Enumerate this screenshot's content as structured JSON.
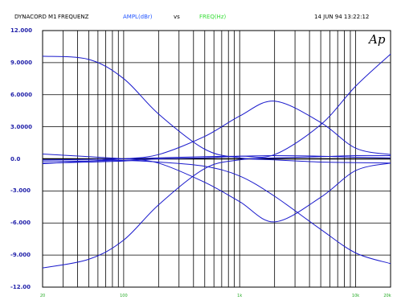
{
  "header": {
    "device": "DYNACORD M1",
    "mode": "FREQUENZ",
    "y_quantity": "AMPL(dBr)",
    "vs": "vs",
    "x_quantity": "FREQ(Hz)",
    "datetime": "14 JUN 94 13:22:12"
  },
  "logo_text": "Ap",
  "colors": {
    "curve": "#1a1acc",
    "grid": "#000000",
    "y_label": "#2222aa",
    "x_label": "#22aa22",
    "header_y": "#2255ff",
    "header_x": "#33dd33"
  },
  "chart_data": {
    "type": "line",
    "title": "",
    "xlabel": "FREQ(Hz)",
    "ylabel": "AMPL(dBr)",
    "xscale": "log",
    "xlim": [
      20,
      20000
    ],
    "ylim": [
      -12,
      12
    ],
    "y_ticks": [
      "12.000",
      "9.0000",
      "6.0000",
      "3.0000",
      "0.0",
      "-3.000",
      "-6.000",
      "-9.000",
      "-12.00"
    ],
    "x_ticks": [
      "20",
      "100",
      "1k",
      "10k",
      "20k"
    ],
    "grid": true,
    "series": [
      {
        "x": [
          20,
          50,
          100,
          200,
          500,
          1000,
          2000,
          5000,
          10000,
          20000
        ],
        "values": [
          9.6,
          9.3,
          7.5,
          4.2,
          0.9,
          0.1,
          -0.1,
          -0.3,
          -0.35,
          -0.4
        ]
      },
      {
        "x": [
          20,
          50,
          100,
          200,
          500,
          1000,
          2000,
          5000,
          10000,
          20000
        ],
        "values": [
          -10.2,
          -9.4,
          -7.6,
          -4.3,
          -0.9,
          -0.1,
          0.1,
          0.2,
          0.3,
          0.3
        ]
      },
      {
        "x": [
          20,
          50,
          100,
          200,
          500,
          1000,
          2000,
          5000,
          10000,
          20000
        ],
        "values": [
          -0.45,
          -0.2,
          0.0,
          0.4,
          2.1,
          4.0,
          5.4,
          3.4,
          1.0,
          0.4
        ]
      },
      {
        "x": [
          20,
          50,
          100,
          200,
          500,
          1000,
          2000,
          5000,
          10000,
          20000
        ],
        "values": [
          0.45,
          0.2,
          0.0,
          -0.4,
          -2.2,
          -4.0,
          -5.9,
          -3.6,
          -1.1,
          -0.4
        ]
      },
      {
        "x": [
          20,
          50,
          100,
          200,
          500,
          1000,
          2000,
          5000,
          10000,
          20000
        ],
        "values": [
          -0.4,
          -0.3,
          -0.2,
          0.0,
          0.1,
          0.25,
          0.4,
          3.2,
          6.8,
          9.8
        ]
      },
      {
        "x": [
          20,
          50,
          100,
          200,
          500,
          1000,
          2000,
          5000,
          10000,
          20000
        ],
        "values": [
          -0.2,
          -0.2,
          -0.15,
          -0.3,
          -0.7,
          -1.6,
          -3.5,
          -6.6,
          -8.8,
          -9.8
        ]
      },
      {
        "x": [
          20,
          50,
          100,
          200,
          500,
          1000,
          2000,
          5000,
          10000,
          20000
        ],
        "values": [
          -0.1,
          -0.05,
          0.0,
          0.1,
          0.2,
          0.25,
          0.3,
          0.25,
          0.15,
          0.1
        ]
      }
    ]
  }
}
